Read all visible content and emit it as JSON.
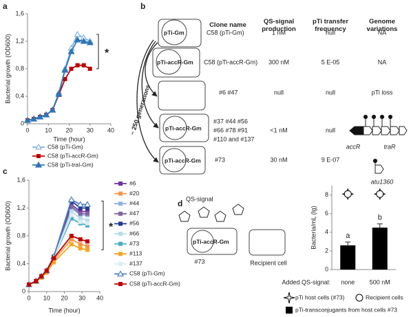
{
  "panel_labels": [
    "a",
    "b",
    "c",
    "d"
  ],
  "chart_data": [
    {
      "type": "line",
      "xlabel": "Time (hour)",
      "ylabel": "Bacterial growth (OD600)",
      "x": [
        0,
        3,
        6,
        9,
        12,
        15,
        18,
        21,
        24,
        27,
        30
      ],
      "xlim": [
        0,
        40
      ],
      "xticks": [
        0,
        10,
        20,
        30,
        40
      ],
      "ylim": [
        0,
        1.6
      ],
      "yticks": [
        0,
        {
          "value": 0.4,
          "label": "0,4"
        },
        {
          "value": 0.8,
          "label": "0,8"
        },
        {
          "value": 1.2,
          "label": "1,2"
        },
        {
          "value": 1.6,
          "label": "1,6"
        }
      ],
      "annotations": [
        "*"
      ],
      "series": [
        {
          "name": "C58 (pTi-Gm)",
          "color": "#7fb2e5",
          "marker": "triangle-open",
          "values": [
            0.05,
            0.07,
            0.1,
            0.13,
            0.2,
            0.45,
            0.8,
            1.1,
            1.3,
            1.25,
            1.2
          ]
        },
        {
          "name": "C58 (pTi-accR-Gm)",
          "color": "#c00000",
          "marker": "square",
          "values": [
            0.05,
            0.07,
            0.1,
            0.13,
            0.2,
            0.42,
            0.65,
            0.8,
            0.85,
            0.85,
            0.8
          ]
        },
        {
          "name": "C58 (pTi-traI-Gm)",
          "color": "#2e75b6",
          "marker": "triangle",
          "values": [
            0.05,
            0.07,
            0.1,
            0.13,
            0.2,
            0.43,
            0.78,
            1.05,
            1.22,
            1.2,
            1.18
          ]
        }
      ]
    },
    {
      "type": "line",
      "xlabel": "Time (hour)",
      "ylabel": "Bacterial growth (OD600)",
      "x": [
        0,
        4,
        7,
        10,
        14,
        24,
        29,
        33
      ],
      "xlim": [
        0,
        40
      ],
      "xticks": [
        0,
        10,
        20,
        30,
        40
      ],
      "ylim": [
        0,
        1.6
      ],
      "yticks": [
        0,
        {
          "value": 0.4,
          "label": "0,4"
        },
        {
          "value": 0.8,
          "label": "0,8"
        },
        {
          "value": 1.2,
          "label": "1,2"
        },
        {
          "value": 1.6,
          "label": "1,6"
        }
      ],
      "annotations": [
        "*"
      ],
      "series": [
        {
          "name": "#6",
          "color": "#7030a0",
          "marker": "square",
          "values": [
            0.1,
            0.15,
            0.22,
            0.3,
            0.5,
            1.25,
            1.15,
            1.15
          ]
        },
        {
          "name": "#20",
          "color": "#f79646",
          "marker": "square",
          "values": [
            0.1,
            0.15,
            0.2,
            0.28,
            0.45,
            0.75,
            0.68,
            0.65
          ]
        },
        {
          "name": "#44",
          "color": "#8db3e2",
          "marker": "square",
          "values": [
            0.1,
            0.15,
            0.22,
            0.3,
            0.5,
            1.2,
            1.1,
            1.1
          ]
        },
        {
          "name": "#47",
          "color": "#8064a2",
          "marker": "square",
          "values": [
            0.1,
            0.15,
            0.22,
            0.3,
            0.5,
            1.22,
            1.12,
            1.12
          ]
        },
        {
          "name": "#56",
          "color": "#1f3a93",
          "marker": "square",
          "values": [
            0.1,
            0.15,
            0.22,
            0.3,
            0.5,
            1.3,
            1.2,
            1.2
          ]
        },
        {
          "name": "#66",
          "color": "#b7dde8",
          "marker": "square",
          "values": [
            0.1,
            0.15,
            0.22,
            0.3,
            0.48,
            1.15,
            1.05,
            1.02
          ]
        },
        {
          "name": "#73",
          "color": "#4bacc6",
          "marker": "square",
          "values": [
            0.1,
            0.15,
            0.22,
            0.3,
            0.48,
            1.05,
            0.98,
            0.95
          ]
        },
        {
          "name": "#113",
          "color": "#f5a623",
          "marker": "square",
          "values": [
            0.1,
            0.14,
            0.2,
            0.27,
            0.42,
            0.68,
            0.62,
            0.6
          ]
        },
        {
          "name": "#137",
          "color": "#daeef3",
          "marker": "square",
          "values": [
            0.1,
            0.15,
            0.22,
            0.3,
            0.48,
            1.1,
            1.0,
            0.98
          ]
        },
        {
          "name": "C58 (pTi-Gm)",
          "color": "#4f81bd",
          "marker": "triangle-open",
          "values": [
            0.1,
            0.15,
            0.22,
            0.3,
            0.5,
            1.32,
            1.25,
            1.25
          ]
        },
        {
          "name": "C58 (pTi-accR-Gm)",
          "color": "#c00000",
          "marker": "square",
          "values": [
            0.1,
            0.15,
            0.22,
            0.3,
            0.48,
            0.8,
            0.75,
            0.72
          ]
        }
      ]
    },
    {
      "type": "bar",
      "xlabel": "Added QS-signal:",
      "ylabel": "Bacteria/mL (lg)",
      "categories": [
        "none",
        "500 nM"
      ],
      "ylim": [
        0,
        9
      ],
      "yticks": [
        0,
        2,
        4,
        6,
        8
      ],
      "annotations": [
        "a",
        "b"
      ],
      "series": [
        {
          "name": "pTi host cells (#73)",
          "color": "#000000",
          "marker": "star",
          "values": [
            8.1,
            8.1
          ]
        },
        {
          "name": "Recipient cells",
          "color": "#000000",
          "marker": "circle",
          "values": [
            8.1,
            8.1
          ]
        },
        {
          "name": "pTi-transconjugants from host cells #73",
          "color": "#000000",
          "marker": "bar",
          "values": [
            2.6,
            4.5
          ],
          "errors": [
            0.35,
            0.4
          ]
        }
      ]
    }
  ],
  "clone_table": {
    "arrow_label": "~ 250 generations",
    "headers": [
      "Clone name",
      "QS-signal production",
      "pTi transfer frequency",
      "Genome variations"
    ],
    "rows": [
      {
        "plasmid": "pTi-Gm",
        "clone": [
          "C58 (pTi-Gm)"
        ],
        "qs_signal": "1 nM",
        "transfer": "null",
        "genome": "NA"
      },
      {
        "plasmid": "pTi-accR-Gm",
        "clone": [
          "C58 (pTi-accR-Gm)"
        ],
        "qs_signal": "300 nM",
        "transfer": "5 E-05",
        "genome": "NA"
      },
      {
        "clone": [
          "#6 #47"
        ],
        "qs_signal": "null",
        "transfer": "null",
        "genome": "pTi loss"
      },
      {
        "plasmid": "pTi-accR-Gm",
        "clone": [
          "#37 #44 #56",
          "#66 #78 #91",
          "#110 and #137"
        ],
        "qs_signal": "<1 nM",
        "transfer": "null",
        "genome": {
          "genes": [
            "accR",
            "traR"
          ]
        }
      },
      {
        "plasmid": "pTi-accR-Gm",
        "clone": [
          "#73"
        ],
        "qs_signal": "30 nM",
        "transfer": "9 E-07",
        "genome": {
          "genes": [
            "atu1360"
          ]
        }
      }
    ]
  },
  "qs_diagram": {
    "signal_label": "QS-signal",
    "host_plasmid": "pTi-accR-Gm",
    "host_label": "#73",
    "recipient_label": "Recipient cell"
  }
}
